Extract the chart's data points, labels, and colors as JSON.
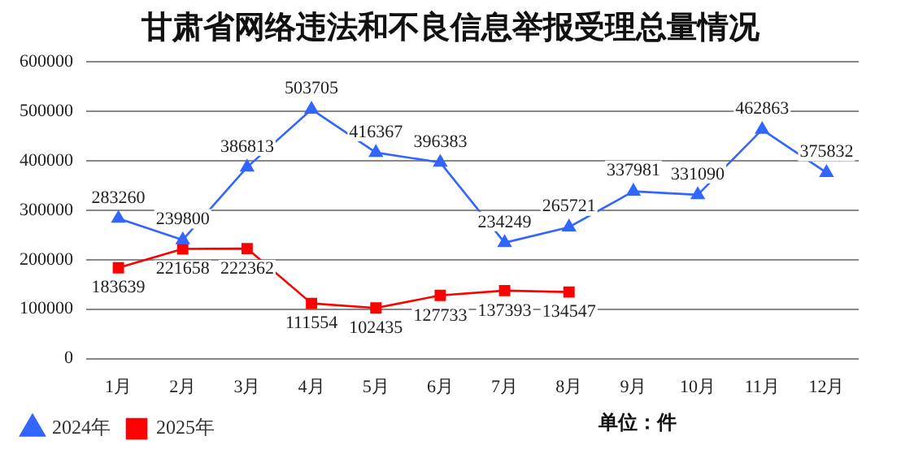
{
  "chart_data": {
    "type": "line",
    "title": "甘肃省网络违法和不良信息举报受理总量情况",
    "categories": [
      "1月",
      "2月",
      "3月",
      "4月",
      "5月",
      "6月",
      "7月",
      "8月",
      "9月",
      "10月",
      "11月",
      "12月"
    ],
    "series": [
      {
        "name": "2024年",
        "color": "#3366ff",
        "marker": "triangle",
        "values": [
          283260,
          239800,
          386813,
          503705,
          416367,
          396383,
          234249,
          265721,
          337981,
          331090,
          462863,
          375832
        ]
      },
      {
        "name": "2025年",
        "color": "#ff0000",
        "marker": "square",
        "values": [
          183639,
          221658,
          222362,
          111554,
          102435,
          127733,
          137393,
          134547,
          null,
          null,
          null,
          null
        ]
      }
    ],
    "ylim": [
      0,
      600000
    ],
    "yticks": [
      0,
      100000,
      200000,
      300000,
      400000,
      500000,
      600000
    ],
    "grid": "y",
    "legend": "bottom",
    "data_labels": true,
    "annotations": [
      "单位：件"
    ]
  }
}
